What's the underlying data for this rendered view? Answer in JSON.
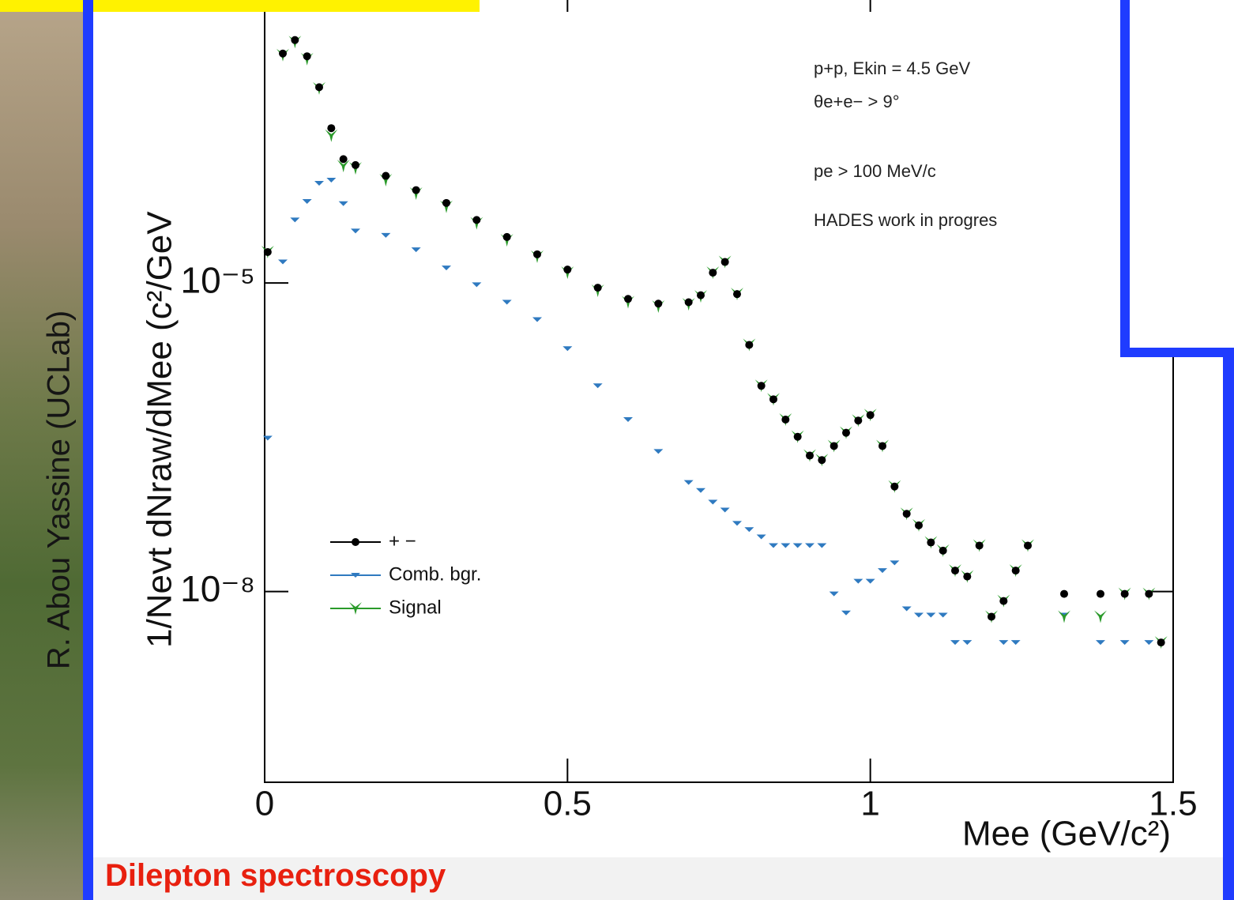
{
  "slide": {
    "author": "R. Abou Yassine (UCLab)",
    "caption": "Dilepton spectroscopy"
  },
  "chart_data": {
    "type": "scatter",
    "x_label": "Mee (GeV/c²)",
    "y_label": "1/Nevt dNraw/dMee (c²/GeV",
    "annotations": [
      "p+p, Ekin = 4.5 GeV",
      "θe+e− > 9°",
      "pe > 100 MeV/c",
      "HADES work in progres"
    ],
    "log_y": true,
    "legend": "lower left",
    "xlim": [
      0,
      1.5
    ],
    "xticks": [
      0,
      0.5,
      1,
      1.5
    ],
    "ylim": [
      1.4e-10,
      0.0041
    ],
    "yticks": [
      {
        "value": 1e-05,
        "label": "10⁻⁵"
      },
      {
        "value": 1e-08,
        "label": "10⁻⁸"
      }
    ],
    "x": [
      0.005,
      0.03,
      0.05,
      0.07,
      0.09,
      0.11,
      0.13,
      0.15,
      0.2,
      0.25,
      0.3,
      0.35,
      0.4,
      0.45,
      0.5,
      0.55,
      0.6,
      0.65,
      0.7,
      0.72,
      0.74,
      0.76,
      0.78,
      0.8,
      0.82,
      0.84,
      0.86,
      0.88,
      0.9,
      0.92,
      0.94,
      0.96,
      0.98,
      1.0,
      1.02,
      1.04,
      1.06,
      1.08,
      1.1,
      1.12,
      1.14,
      1.16,
      1.18,
      1.2,
      1.22,
      1.24,
      1.26,
      1.32,
      1.38,
      1.42,
      1.46,
      1.48
    ],
    "series": [
      {
        "name": "+ −",
        "color": "#000000",
        "marker": "circle",
        "values": [
          2e-05,
          0.0017,
          0.0023,
          0.0016,
          0.0008,
          0.00032,
          0.00016,
          0.00014,
          0.00011,
          8e-05,
          6e-05,
          4.1e-05,
          2.8e-05,
          1.9e-05,
          1.35e-05,
          9e-06,
          7e-06,
          6.3e-06,
          6.5e-06,
          7.6e-06,
          1.26e-05,
          1.6e-05,
          7.8e-06,
          2.5e-06,
          1e-06,
          7.4e-07,
          4.7e-07,
          3.2e-07,
          2.1e-07,
          1.9e-07,
          2.6e-07,
          3.5e-07,
          4.6e-07,
          5.2e-07,
          2.6e-07,
          1.05e-07,
          5.7e-08,
          4.4e-08,
          3e-08,
          2.5e-08,
          1.6e-08,
          1.4e-08,
          2.8e-08,
          5.7e-09,
          8.1e-09,
          1.6e-08,
          2.8e-08,
          9.5e-09,
          9.5e-09,
          9.5e-09,
          9.5e-09,
          3.2e-09
        ]
      },
      {
        "name": "Comb. bgr.",
        "color": "#2f7ac0",
        "marker": "triangle",
        "values": [
          3.1e-07,
          1.6e-05,
          4.1e-05,
          6.2e-05,
          9.3e-05,
          0.0001,
          5.9e-05,
          3.2e-05,
          2.9e-05,
          2.1e-05,
          1.4e-05,
          9.6e-06,
          6.5e-06,
          4.4e-06,
          2.3e-06,
          1e-06,
          4.7e-07,
          2.3e-07,
          1.15e-07,
          9.6e-08,
          7.4e-08,
          6.2e-08,
          4.6e-08,
          4e-08,
          3.4e-08,
          2.8e-08,
          2.8e-08,
          2.8e-08,
          2.8e-08,
          2.8e-08,
          9.5e-09,
          6.2e-09,
          1.26e-08,
          1.26e-08,
          1.6e-08,
          1.9e-08,
          6.8e-09,
          5.9e-09,
          5.9e-09,
          5.9e-09,
          3.2e-09,
          3.2e-09,
          null,
          null,
          3.2e-09,
          3.2e-09,
          null,
          5.9e-09,
          3.2e-09,
          3.2e-09,
          3.2e-09,
          null
        ]
      },
      {
        "name": "Signal",
        "color": "#2a9a2a",
        "marker": "star",
        "values": [
          2e-05,
          0.00164,
          0.0022,
          0.0015,
          0.00078,
          0.00027,
          0.000137,
          0.00013,
          0.0001,
          7.4e-05,
          5.5e-05,
          3.8e-05,
          2.6e-05,
          1.8e-05,
          1.26e-05,
          8.4e-06,
          6.5e-06,
          5.9e-06,
          6.2e-06,
          7.4e-06,
          1.26e-05,
          1.6e-05,
          7.8e-06,
          2.5e-06,
          1e-06,
          7.4e-07,
          4.7e-07,
          3.2e-07,
          2.1e-07,
          1.9e-07,
          2.6e-07,
          3.5e-07,
          4.6e-07,
          5.2e-07,
          2.6e-07,
          1.05e-07,
          5.7e-08,
          4.4e-08,
          3e-08,
          2.5e-08,
          1.6e-08,
          1.4e-08,
          2.8e-08,
          5.7e-09,
          8.1e-09,
          1.6e-08,
          2.8e-08,
          5.7e-09,
          5.7e-09,
          9.5e-09,
          9.5e-09,
          3.2e-09
        ]
      }
    ]
  }
}
